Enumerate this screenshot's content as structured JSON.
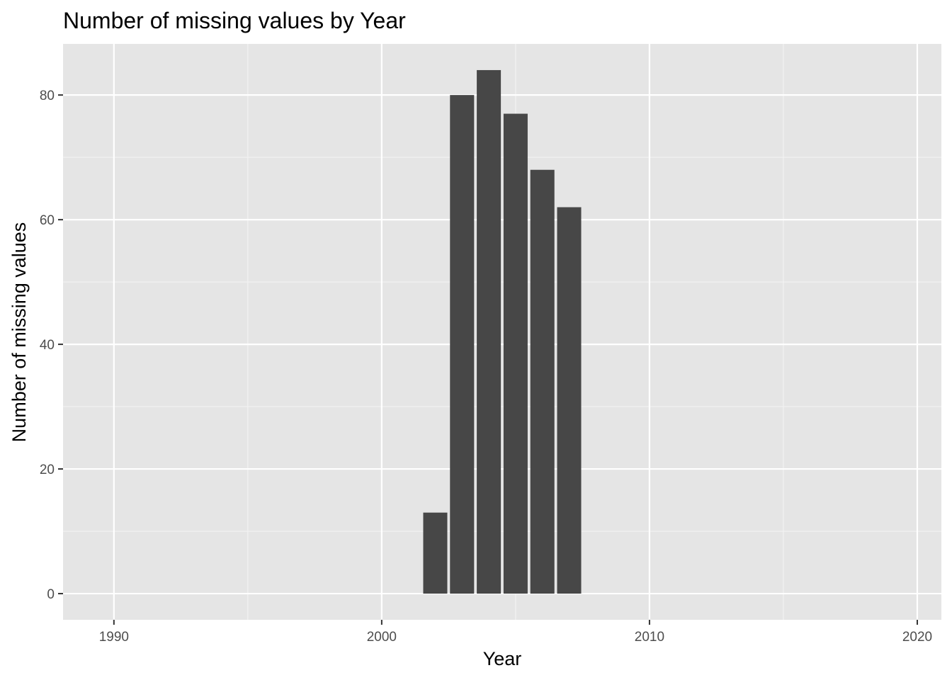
{
  "chart_data": {
    "type": "bar",
    "title": "Number of missing values by Year",
    "xlabel": "Year",
    "ylabel": "Number of missing values",
    "x": [
      2002,
      2003,
      2004,
      2005,
      2006,
      2007
    ],
    "values": [
      13,
      80,
      84,
      77,
      68,
      62
    ],
    "xlim": [
      1988.1,
      2020.9
    ],
    "ylim": [
      -4.2,
      88.2
    ],
    "x_ticks": [
      1990,
      2000,
      2010,
      2020
    ],
    "x_tick_labels": [
      "1990",
      "2000",
      "2010",
      "2020"
    ],
    "y_ticks": [
      0,
      20,
      40,
      60,
      80
    ],
    "y_tick_labels": [
      "0",
      "20",
      "40",
      "60",
      "80"
    ],
    "grid": true,
    "colors": {
      "panel_background": "#e5e5e5",
      "grid_major": "#ffffff",
      "grid_minor": "#f2f2f2",
      "bar_fill": "#474747",
      "tick_label": "#4d4d4d"
    }
  }
}
